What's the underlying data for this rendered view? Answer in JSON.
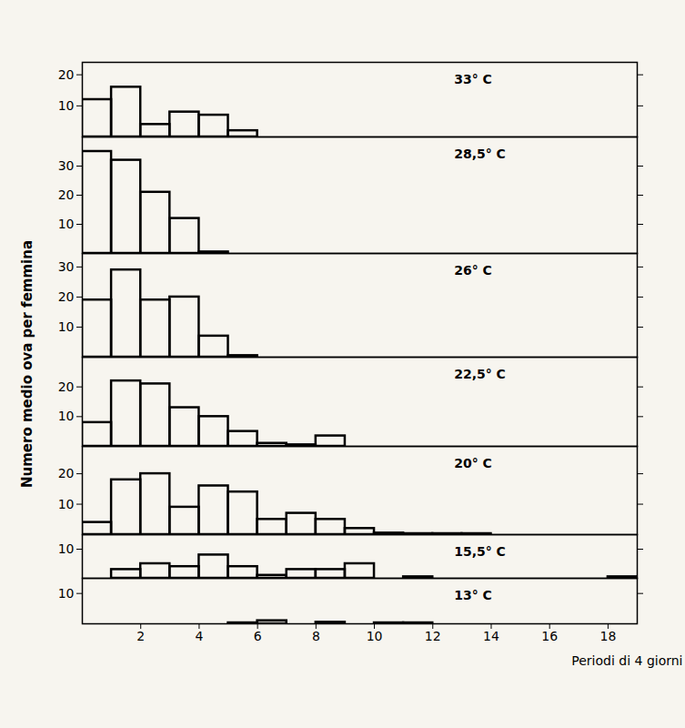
{
  "chart_data": {
    "type": "histogram",
    "y_label": "Numero medio ova per femmina",
    "x_label": "Periodi di 4 giorni",
    "bins": [
      0,
      1,
      2,
      3,
      4,
      5,
      6,
      7,
      8,
      9,
      10,
      11,
      12,
      13,
      14,
      15,
      16,
      17,
      18,
      19
    ],
    "xlim": [
      0,
      19
    ],
    "xticks": [
      2,
      4,
      6,
      8,
      10,
      12,
      14,
      16,
      18
    ],
    "panels": [
      {
        "title": "33° C",
        "ylim": [
          0,
          24
        ],
        "yticks": [
          10,
          20
        ],
        "values": [
          12,
          16,
          4,
          8,
          7,
          2,
          0,
          0,
          0,
          0,
          0,
          0,
          0,
          0,
          0,
          0,
          0,
          0,
          0
        ]
      },
      {
        "title": "28,5° C",
        "ylim": [
          0,
          40
        ],
        "yticks": [
          10,
          20,
          30
        ],
        "values": [
          35,
          32,
          21,
          12,
          0.5,
          0,
          0,
          0,
          0,
          0,
          0,
          0,
          0,
          0,
          0,
          0,
          0,
          0,
          0
        ]
      },
      {
        "title": "26° C",
        "ylim": [
          0,
          34.5
        ],
        "yticks": [
          10,
          20,
          30
        ],
        "values": [
          19,
          29,
          19,
          20,
          7,
          0.5,
          0,
          0,
          0,
          0,
          0,
          0,
          0,
          0,
          0,
          0,
          0,
          0,
          0
        ]
      },
      {
        "title": "22,5° C",
        "ylim": [
          0,
          30
        ],
        "yticks": [
          10,
          20
        ],
        "values": [
          8,
          22,
          21,
          13,
          10,
          5,
          1,
          0.5,
          3.5,
          0,
          0,
          0,
          0,
          0,
          0,
          0,
          0,
          0,
          0
        ]
      },
      {
        "title": "20° C",
        "ylim": [
          0,
          29
        ],
        "yticks": [
          10,
          20
        ],
        "values": [
          4,
          18,
          20,
          9,
          16,
          14,
          5,
          7,
          5,
          2,
          0.5,
          0.3,
          0.3,
          0.3,
          0,
          0,
          0,
          0,
          0
        ]
      },
      {
        "title": "15,5° C",
        "ylim": [
          0,
          15
        ],
        "yticks": [
          10
        ],
        "values": [
          0,
          3,
          5,
          4,
          8,
          4,
          1,
          3,
          3,
          5,
          0,
          0.5,
          0,
          0,
          0,
          0,
          0,
          0,
          0.5
        ]
      },
      {
        "title": "13° C",
        "ylim": [
          0,
          15
        ],
        "yticks": [
          10
        ],
        "values": [
          0,
          0,
          0,
          0,
          0,
          0.3,
          1,
          0,
          0.5,
          0,
          0.3,
          0.3,
          0,
          0,
          0,
          0,
          0,
          0,
          0
        ]
      }
    ]
  }
}
